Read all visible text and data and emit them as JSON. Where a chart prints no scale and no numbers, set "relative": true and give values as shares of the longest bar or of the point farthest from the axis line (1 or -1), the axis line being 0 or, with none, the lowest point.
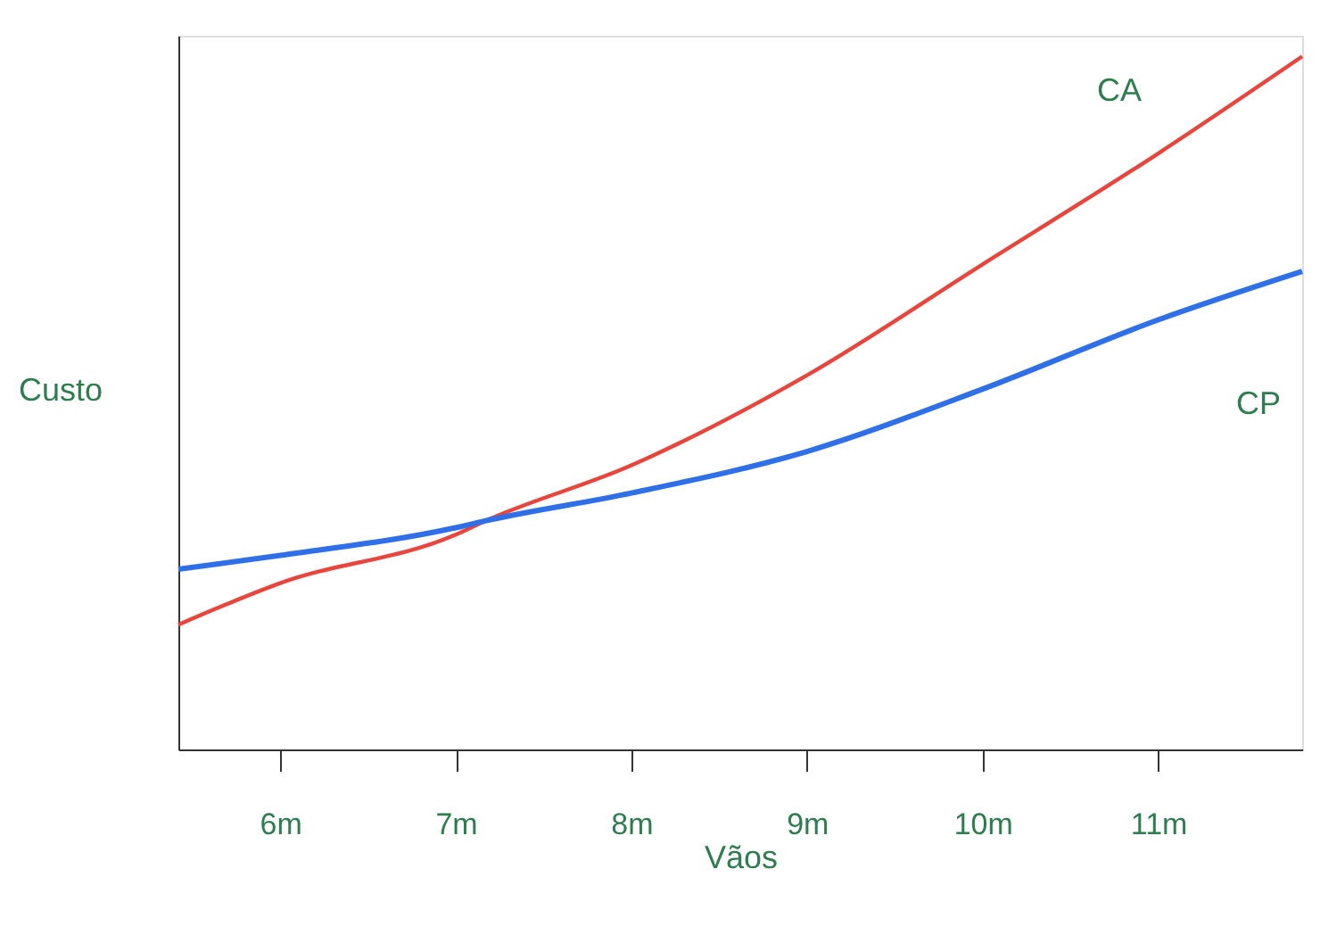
{
  "chart_data": {
    "type": "line",
    "xlabel": "Vãos",
    "ylabel": "Custo",
    "relative": true,
    "xlim": [
      5.42,
      11.82
    ],
    "xticks": [
      {
        "value": 6,
        "label": "6m"
      },
      {
        "value": 7,
        "label": "7m"
      },
      {
        "value": 8,
        "label": "8m"
      },
      {
        "value": 9,
        "label": "9m"
      },
      {
        "value": 10,
        "label": "10m"
      },
      {
        "value": 11,
        "label": "11m"
      }
    ],
    "x": [
      5.42,
      6,
      7,
      7.17,
      8,
      9,
      10,
      11,
      11.82
    ],
    "series": [
      {
        "name": "CA",
        "color": "#e8453c",
        "values": [
          0.18,
          0.24,
          0.31,
          0.33,
          0.41,
          0.54,
          0.7,
          0.86,
          1.0
        ]
      },
      {
        "name": "CP",
        "color": "#2f6fe8",
        "values": [
          0.26,
          0.28,
          0.32,
          0.33,
          0.37,
          0.43,
          0.52,
          0.62,
          0.69
        ]
      }
    ],
    "grid": false,
    "marker": "none",
    "line_style": "solid"
  }
}
